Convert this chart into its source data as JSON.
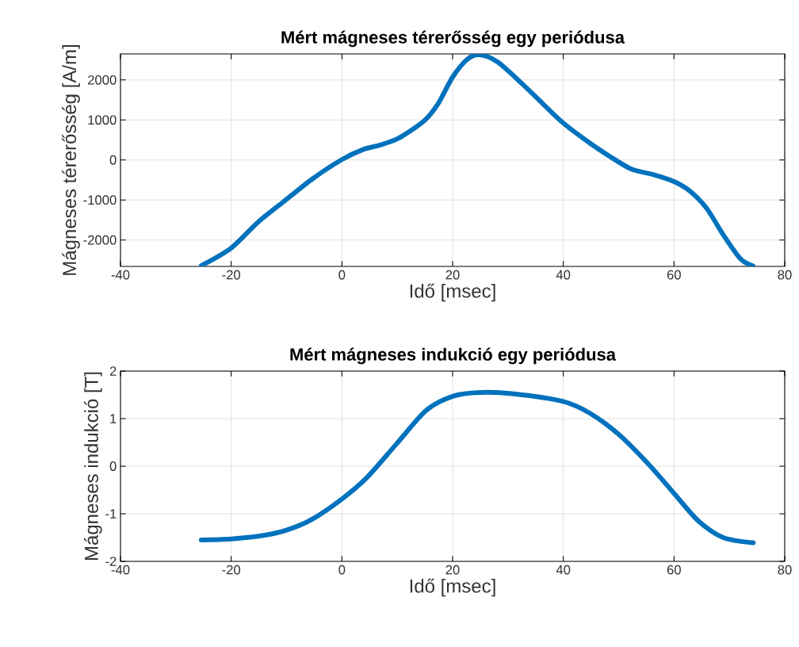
{
  "chart_data": [
    {
      "type": "line",
      "title": "Mért mágneses térerősség egy periódusa",
      "xlabel": "Idő [msec]",
      "ylabel": "Mágneses térerősség [A/m]",
      "color": "#0072bd",
      "grid": true,
      "line_style": "solid",
      "x": [
        -25.4,
        -20,
        -15.2,
        -10.6,
        -5.3,
        0,
        3.8,
        6.8,
        10.2,
        14.8,
        17.4,
        20,
        22.7,
        24.9,
        28.1,
        32.6,
        36.4,
        40,
        44.7,
        48.5,
        52.3,
        56.1,
        60,
        62.9,
        65.9,
        68.9,
        72,
        74.3
      ],
      "values": [
        -2640,
        -2200,
        -1560,
        -1050,
        -470,
        10,
        260,
        370,
        540,
        970,
        1410,
        2070,
        2520,
        2630,
        2450,
        1900,
        1390,
        920,
        430,
        80,
        -230,
        -360,
        -540,
        -780,
        -1210,
        -1870,
        -2470,
        -2650
      ],
      "xlim": [
        -40,
        80
      ],
      "ylim": [
        -2660,
        2650
      ],
      "xticks": [
        -40,
        -20,
        0,
        20,
        40,
        60,
        80
      ],
      "yticks": [
        -2000,
        -1000,
        0,
        1000,
        2000
      ]
    },
    {
      "type": "line",
      "title": "Mért mágneses indukció egy periódusa",
      "xlabel": "Idő [msec]",
      "ylabel": "Mágneses indukció [T]",
      "color": "#0072bd",
      "grid": true,
      "line_style": "solid",
      "x": [
        -25.4,
        -20,
        -14.4,
        -9.9,
        -5.3,
        0,
        4.5,
        9.8,
        15.2,
        20,
        25,
        31.1,
        40,
        44.7,
        50,
        55.5,
        60,
        64.4,
        68.9,
        74.3
      ],
      "values": [
        -1.55,
        -1.53,
        -1.46,
        -1.34,
        -1.11,
        -0.69,
        -0.24,
        0.46,
        1.17,
        1.47,
        1.55,
        1.52,
        1.36,
        1.12,
        0.67,
        0.03,
        -0.57,
        -1.15,
        -1.5,
        -1.61
      ],
      "xlim": [
        -40,
        80
      ],
      "ylim": [
        -2,
        2
      ],
      "xticks": [
        -40,
        -20,
        0,
        20,
        40,
        60,
        80
      ],
      "yticks": [
        -2,
        -1,
        0,
        1,
        2
      ]
    }
  ]
}
